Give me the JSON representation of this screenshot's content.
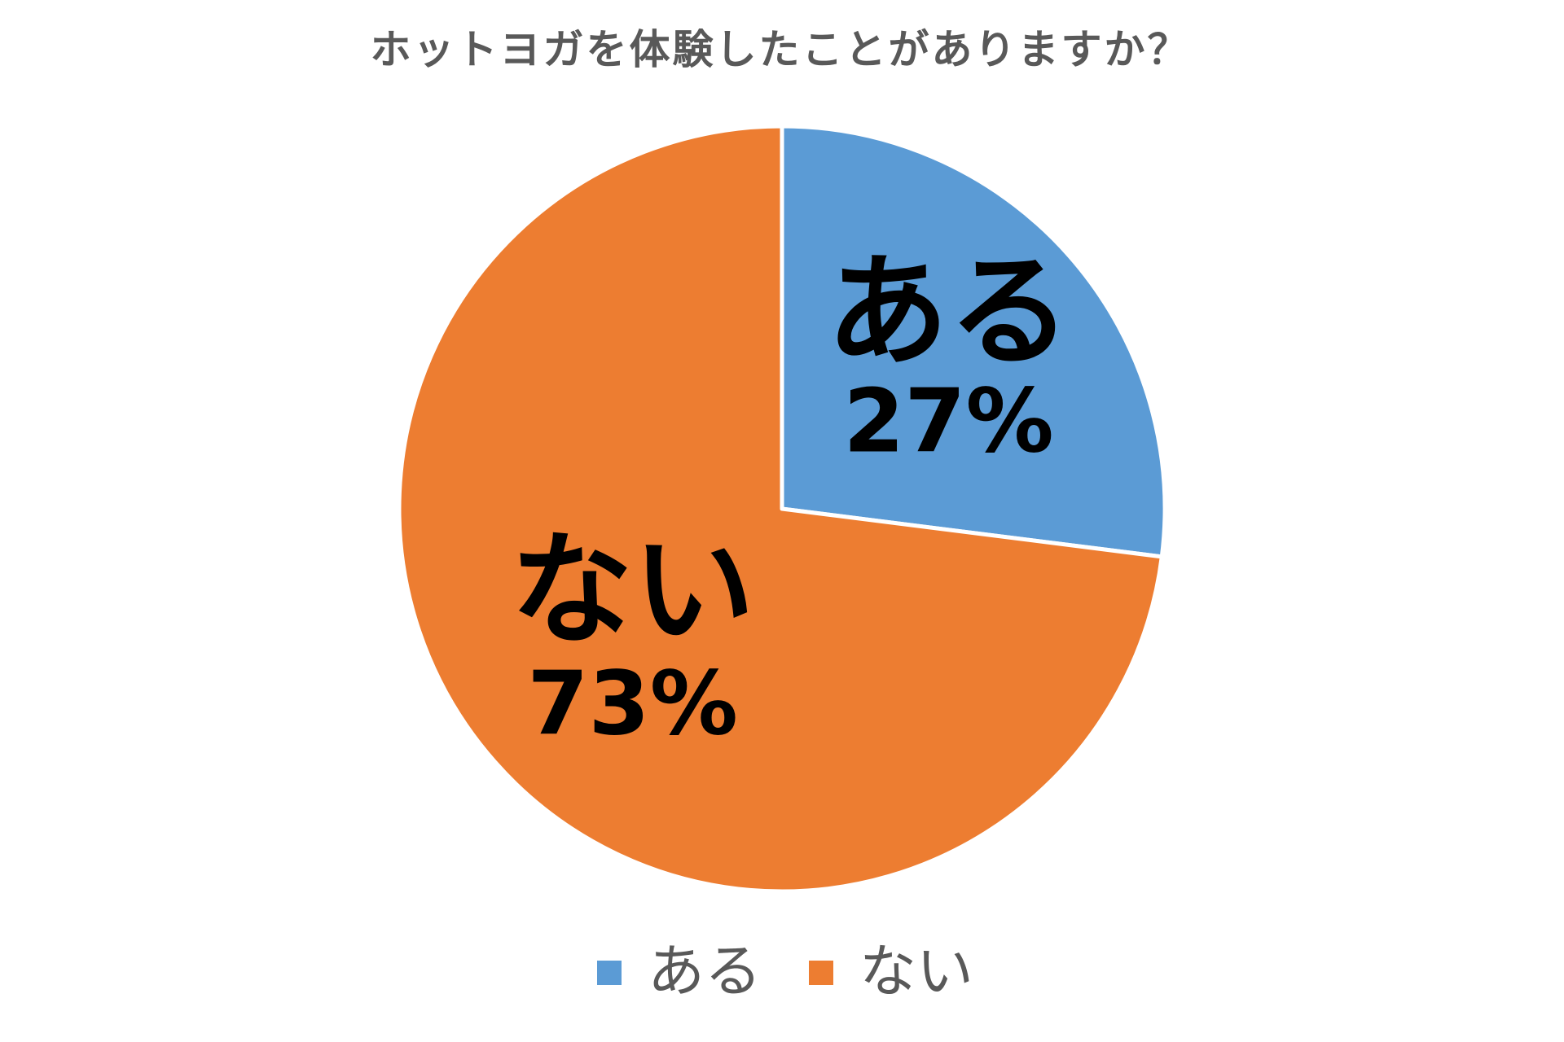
{
  "chart_data": {
    "type": "pie",
    "title": "ホットヨガを体験したことがありますか？",
    "slices": [
      {
        "label": "ある",
        "value": 27,
        "value_label": "27%",
        "color": "#5B9BD5"
      },
      {
        "label": "ない",
        "value": 73,
        "value_label": "73%",
        "color": "#ED7D31"
      }
    ],
    "start_angle_deg": 0,
    "direction": "clockwise",
    "legend": {
      "position": "bottom",
      "items": [
        "ある",
        "ない"
      ]
    }
  }
}
